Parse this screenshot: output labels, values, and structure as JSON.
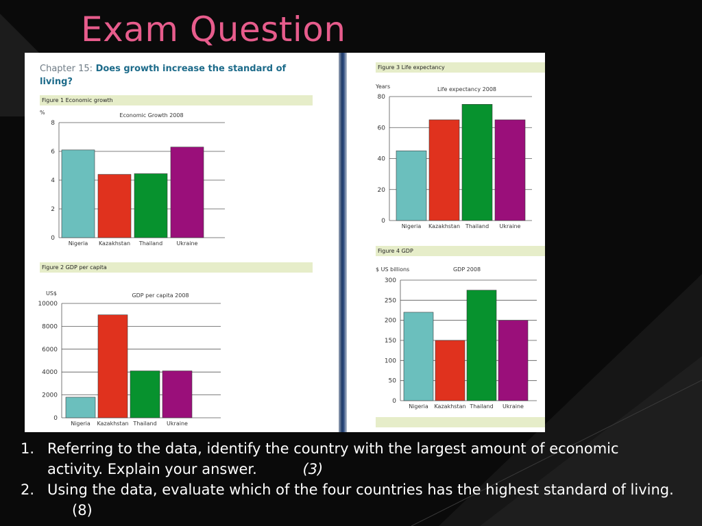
{
  "slide": {
    "title": "Exam Question",
    "chapter_label": "Chapter 15:",
    "chapter_title": "Does growth increase the standard of living?"
  },
  "colors": {
    "title": "#e75c8c",
    "nigeria": "#6bbfbd",
    "kazakhstan": "#e0321e",
    "thailand": "#07922e",
    "ukraine": "#9a0f7a",
    "band": "#e6edc9"
  },
  "figures": {
    "fig1": "Figure 1 Economic growth",
    "fig2": "Figure 2 GDP per capita",
    "fig3": "Figure 3 Life expectancy",
    "fig4": "Figure 4 GDP"
  },
  "chart_data": [
    {
      "type": "bar",
      "title": "Economic Growth 2008",
      "ylabel": "%",
      "categories": [
        "Nigeria",
        "Kazakhstan",
        "Thailand",
        "Ukraine"
      ],
      "values": [
        6.1,
        4.4,
        4.45,
        6.3
      ],
      "ylim": [
        0,
        8
      ],
      "yticks": [
        0,
        2,
        4,
        6,
        8
      ],
      "grid": true
    },
    {
      "type": "bar",
      "title": "GDP per capita 2008",
      "ylabel": "US$",
      "categories": [
        "Nigeria",
        "Kazakhstan",
        "Thailand",
        "Ukraine"
      ],
      "values": [
        1800,
        9000,
        4100,
        4100
      ],
      "ylim": [
        0,
        10000
      ],
      "yticks": [
        0,
        2000,
        4000,
        6000,
        8000,
        10000
      ],
      "grid": true
    },
    {
      "type": "bar",
      "title": "Life expectancy 2008",
      "ylabel": "Years",
      "categories": [
        "Nigeria",
        "Kazakhstan",
        "Thailand",
        "Ukraine"
      ],
      "values": [
        45,
        65,
        75,
        65
      ],
      "ylim": [
        0,
        80
      ],
      "yticks": [
        0,
        20,
        40,
        60,
        80
      ],
      "grid": true
    },
    {
      "type": "bar",
      "title": "GDP 2008",
      "ylabel": "$ US billions",
      "categories": [
        "Nigeria",
        "Kazakhstan",
        "Thailand",
        "Ukraine"
      ],
      "values": [
        220,
        150,
        275,
        200
      ],
      "ylim": [
        0,
        300
      ],
      "yticks": [
        0,
        50,
        100,
        150,
        200,
        250,
        300
      ],
      "grid": true
    }
  ],
  "questions": [
    {
      "number": "1.",
      "text": "Referring to the data, identify the country with the largest amount of economic activity. Explain your answer.",
      "marks": "(3)"
    },
    {
      "number": "2.",
      "text": "Using the data, evaluate which of the four countries has the highest standard of living.",
      "marks": "(8)"
    }
  ]
}
